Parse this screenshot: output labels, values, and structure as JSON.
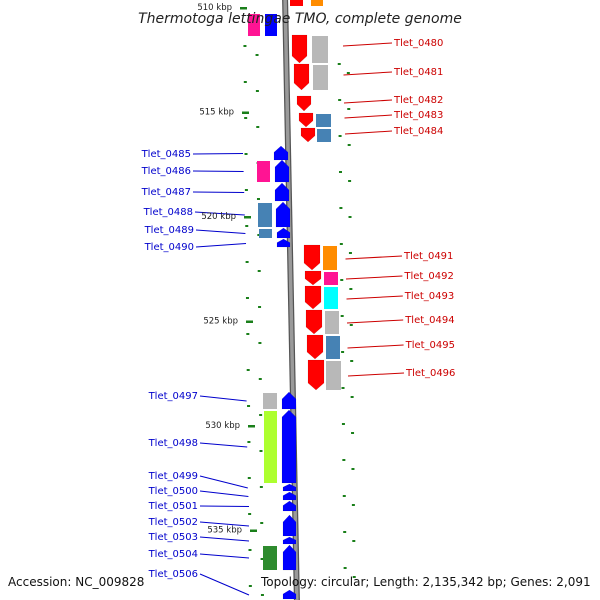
{
  "header": {
    "title": "Thermotoga lettingae TMO, complete genome"
  },
  "footer": {
    "accession": "Accession: NC_009828",
    "summary": "Topology: circular; Length: 2,135,342 bp; Genes: 2,091"
  },
  "colors": {
    "forward_gene": "#ff0000",
    "reverse_gene": "#0000ff",
    "forward_label": "#cc0000",
    "reverse_label": "#0000cc",
    "tick": "#1a7f1a",
    "backbone": "#888888",
    "cog_gray": "#b8b8b8",
    "cog_orange": "#ff8c00",
    "cog_steel": "#4682b4",
    "cog_pink": "#ff1493",
    "cog_cyan": "#00ffff",
    "cog_lime": "#adff2f",
    "cog_green": "#2e8b2e"
  },
  "scale_labels": [
    {
      "text": "510 kbp",
      "kbp": 510
    },
    {
      "text": "515 kbp",
      "kbp": 515
    },
    {
      "text": "520 kbp",
      "kbp": 520
    },
    {
      "text": "525 kbp",
      "kbp": 525
    },
    {
      "text": "530 kbp",
      "kbp": 530
    },
    {
      "text": "535 kbp",
      "kbp": 535
    }
  ],
  "forward_genes": [
    {
      "label": "Tlet_0480",
      "cog": "cog_gray"
    },
    {
      "label": "Tlet_0481",
      "cog": "cog_gray"
    },
    {
      "label": "Tlet_0482",
      "cog": ""
    },
    {
      "label": "Tlet_0483",
      "cog": "cog_steel"
    },
    {
      "label": "Tlet_0484",
      "cog": "cog_steel"
    },
    {
      "label": "Tlet_0491",
      "cog": "cog_orange"
    },
    {
      "label": "Tlet_0492",
      "cog": "cog_pink"
    },
    {
      "label": "Tlet_0493",
      "cog": "cog_cyan"
    },
    {
      "label": "Tlet_0494",
      "cog": "cog_gray"
    },
    {
      "label": "Tlet_0495",
      "cog": "cog_steel"
    },
    {
      "label": "Tlet_0496",
      "cog": "cog_gray"
    }
  ],
  "reverse_genes": [
    {
      "label": "Tlet_0485",
      "cog": ""
    },
    {
      "label": "Tlet_0486",
      "cog": "cog_pink"
    },
    {
      "label": "Tlet_0487",
      "cog": ""
    },
    {
      "label": "Tlet_0488",
      "cog": "cog_steel"
    },
    {
      "label": "Tlet_0489",
      "cog": "cog_steel"
    },
    {
      "label": "Tlet_0490",
      "cog": ""
    },
    {
      "label": "Tlet_0497",
      "cog": "cog_gray"
    },
    {
      "label": "Tlet_0498",
      "cog": "cog_lime"
    },
    {
      "label": "Tlet_0499",
      "cog": ""
    },
    {
      "label": "Tlet_0500",
      "cog": ""
    },
    {
      "label": "Tlet_0501",
      "cog": ""
    },
    {
      "label": "Tlet_0502",
      "cog": ""
    },
    {
      "label": "Tlet_0503",
      "cog": ""
    },
    {
      "label": "Tlet_0504",
      "cog": "cog_green"
    },
    {
      "label": "Tlet_0506",
      "cog": ""
    }
  ]
}
